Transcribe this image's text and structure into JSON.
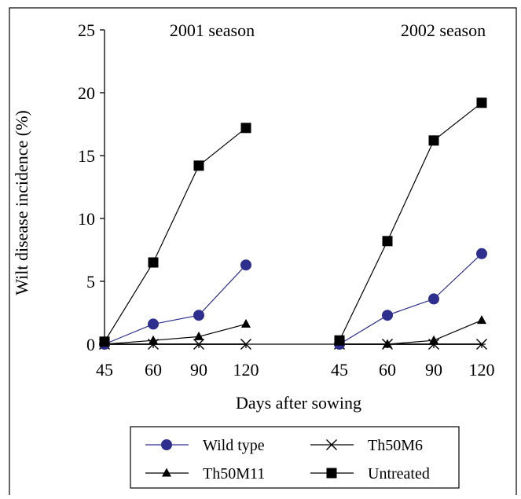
{
  "chart_data": {
    "type": "line",
    "ylabel": "Wilt disease incidence (%)",
    "xlabel": "Days after sowing",
    "ylim": [
      0,
      25
    ],
    "yticks": [
      0,
      5,
      10,
      15,
      20,
      25
    ],
    "x": [
      45,
      60,
      90,
      120
    ],
    "panels": [
      {
        "title": "2001 season",
        "series": [
          {
            "name": "Wild type",
            "values": [
              0,
              1.6,
              2.3,
              6.3
            ]
          },
          {
            "name": "Th50M6",
            "values": [
              0,
              0,
              0,
              0
            ]
          },
          {
            "name": "Th50M11",
            "values": [
              0,
              0.3,
              0.6,
              1.6
            ]
          },
          {
            "name": "Untreated",
            "values": [
              0.2,
              6.5,
              14.2,
              17.2
            ]
          }
        ]
      },
      {
        "title": "2002 season",
        "series": [
          {
            "name": "Wild type",
            "values": [
              0,
              2.3,
              3.6,
              7.2
            ]
          },
          {
            "name": "Th50M6",
            "values": [
              0,
              0,
              0,
              0
            ]
          },
          {
            "name": "Th50M11",
            "values": [
              0,
              0,
              0.3,
              1.9
            ]
          },
          {
            "name": "Untreated",
            "values": [
              0.3,
              8.2,
              16.2,
              19.2
            ]
          }
        ]
      }
    ],
    "legend": {
      "placement": "bottom-center",
      "entries": [
        {
          "name": "Wild type",
          "marker": "circle"
        },
        {
          "name": "Th50M6",
          "marker": "x"
        },
        {
          "name": "Th50M11",
          "marker": "triangle"
        },
        {
          "name": "Untreated",
          "marker": "square"
        }
      ]
    },
    "colors": {
      "Wild type": "#2e2e8e",
      "Th50M6": "#000000",
      "Th50M11": "#000000",
      "Untreated": "#000000"
    },
    "grid": false
  }
}
